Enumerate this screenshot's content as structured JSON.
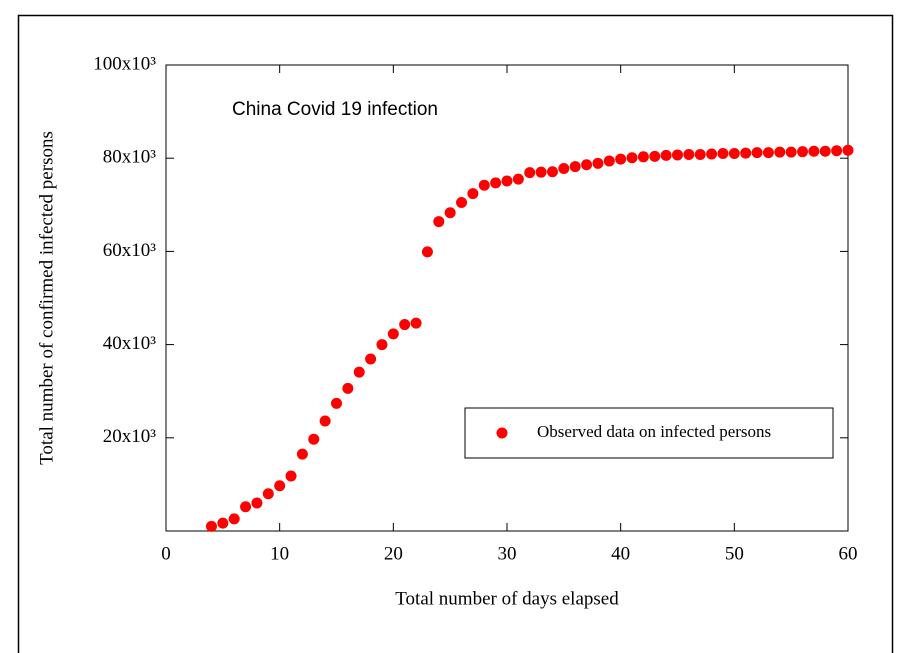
{
  "chart_data": {
    "type": "scatter",
    "annotation": "China Covid 19 infection",
    "x_label": "Total number of days elapsed",
    "y_label": "Total number of confirmed infected persons",
    "x": [
      4,
      5,
      6,
      7,
      8,
      9,
      10,
      11,
      12,
      13,
      14,
      15,
      16,
      17,
      18,
      19,
      20,
      21,
      22,
      23,
      24,
      25,
      26,
      27,
      28,
      29,
      30,
      31,
      32,
      33,
      34,
      35,
      36,
      37,
      38,
      39,
      40,
      41,
      42,
      43,
      44,
      45,
      46,
      47,
      48,
      49,
      50,
      51,
      52,
      53,
      54,
      55,
      56,
      57,
      58,
      59,
      60
    ],
    "series": [
      {
        "name": "Observed data on infected persons",
        "color": "#ff0000",
        "values": [
          1000,
          1700,
          2600,
          5200,
          6000,
          8000,
          9700,
          11800,
          16500,
          19700,
          23600,
          27400,
          30600,
          34100,
          36900,
          40000,
          42300,
          44300,
          44600,
          59900,
          66400,
          68300,
          70500,
          72400,
          74200,
          74700,
          75100,
          75500,
          76900,
          77000,
          77100,
          77800,
          78200,
          78600,
          78900,
          79400,
          79800,
          80100,
          80300,
          80400,
          80600,
          80700,
          80800,
          80800,
          80900,
          81000,
          81000,
          81100,
          81200,
          81200,
          81300,
          81300,
          81400,
          81500,
          81500,
          81600,
          81700
        ]
      }
    ],
    "xlim": [
      0,
      60
    ],
    "xticks": [
      0,
      10,
      20,
      30,
      40,
      50,
      60
    ],
    "ylim": [
      0,
      100000
    ],
    "yticks": [
      {
        "value": 20000,
        "label": "20x10³"
      },
      {
        "value": 40000,
        "label": "40x10³"
      },
      {
        "value": 60000,
        "label": "60x10³"
      },
      {
        "value": 80000,
        "label": "80x10³"
      },
      {
        "value": 100000,
        "label": "100x10³"
      }
    ],
    "legend": "center right",
    "grid": false
  }
}
